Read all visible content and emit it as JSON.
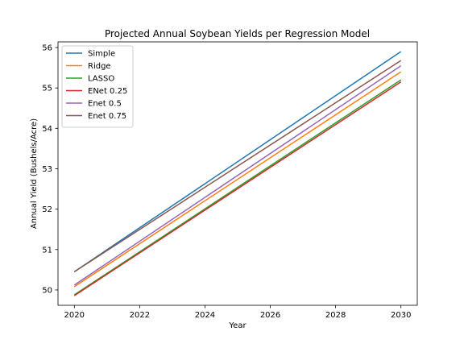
{
  "chart_data": {
    "type": "line",
    "title": "Projected Annual Soybean Yields per Regression Model",
    "xlabel": "Year",
    "ylabel": "Annual Yield (Bushels/Acre)",
    "xlim": [
      2019.5,
      2030.5
    ],
    "ylim": [
      49.62,
      56.14
    ],
    "xticks": [
      "2020",
      "2022",
      "2024",
      "2026",
      "2028",
      "2030"
    ],
    "yticks": [
      "50",
      "51",
      "52",
      "53",
      "54",
      "55",
      "56"
    ],
    "grid": false,
    "legend_position": "top-left",
    "x": [
      2020,
      2030
    ],
    "series": [
      {
        "name": "Simple",
        "color": "#1f77b4",
        "values": [
          50.45,
          55.9
        ]
      },
      {
        "name": "Ridge",
        "color": "#ff7f0e",
        "values": [
          50.08,
          55.4
        ]
      },
      {
        "name": "LASSO",
        "color": "#2ca02c",
        "values": [
          49.88,
          55.2
        ]
      },
      {
        "name": "ENet 0.25",
        "color": "#d62728",
        "values": [
          49.86,
          55.15
        ]
      },
      {
        "name": "Enet 0.5",
        "color": "#9467bd",
        "values": [
          50.12,
          55.55
        ]
      },
      {
        "name": "Enet 0.75",
        "color": "#8c564b",
        "values": [
          50.45,
          55.68
        ]
      }
    ]
  }
}
